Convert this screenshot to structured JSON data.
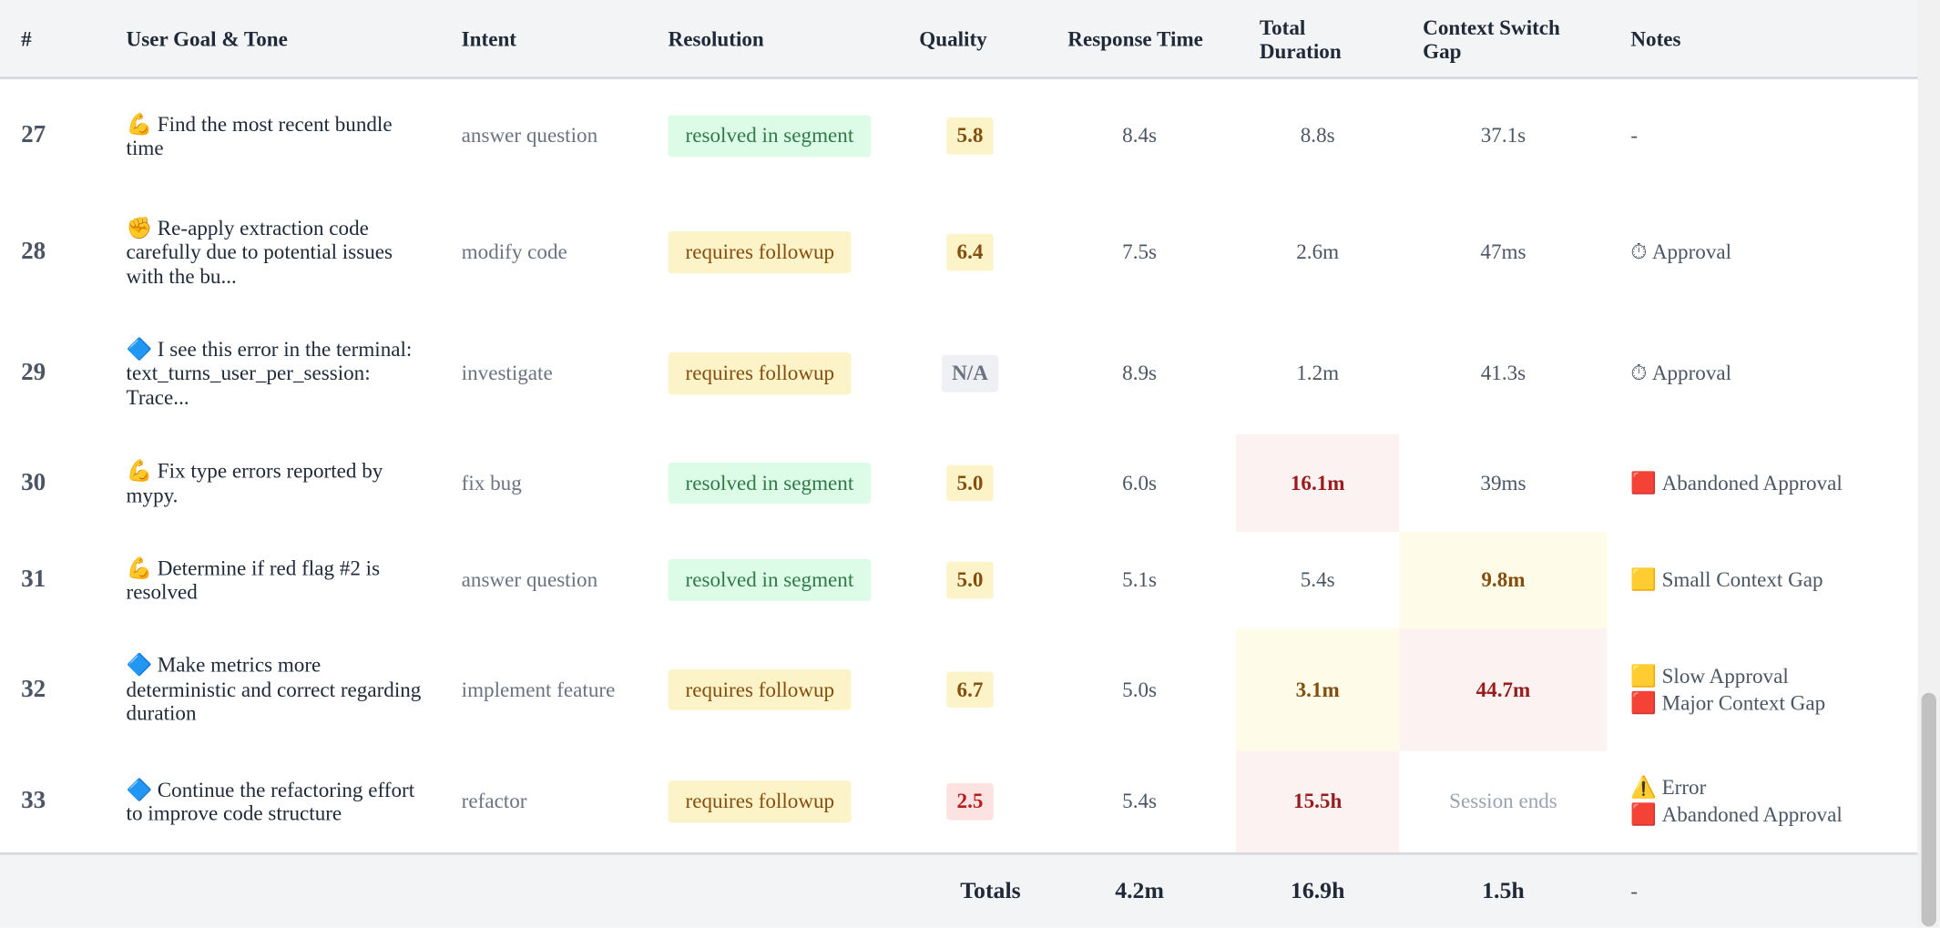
{
  "header": {
    "columns": [
      "#",
      "User Goal & Tone",
      "Intent",
      "Resolution",
      "Quality",
      "Response Time",
      "Total Duration",
      "Context Switch Gap",
      "Notes"
    ]
  },
  "rows": [
    {
      "number": "27",
      "goal_icon": "💪",
      "goal": "Find the most recent bundle time",
      "intent": "answer question",
      "resolution": "resolved in segment",
      "resolution_tone": "green",
      "quality": "5.8",
      "quality_tone": "yellow",
      "response_time": "8.4s",
      "total_duration": "8.8s",
      "context_gap": "37.1s",
      "notes": [
        {
          "text": "-"
        }
      ]
    },
    {
      "number": "28",
      "goal_icon": "✊",
      "goal": "Re-apply extraction code carefully due to potential issues with the bu...",
      "intent": "modify code",
      "resolution": "requires followup",
      "resolution_tone": "yellow",
      "quality": "6.4",
      "quality_tone": "yellow",
      "response_time": "7.5s",
      "total_duration": "2.6m",
      "context_gap": "47ms",
      "notes": [
        {
          "icon": "⏱",
          "text": "Approval"
        }
      ]
    },
    {
      "number": "29",
      "goal_icon": "🔷",
      "goal": "I see this error in the terminal: text_turns_user_per_session: Trace...",
      "intent": "investigate",
      "resolution": "requires followup",
      "resolution_tone": "yellow",
      "quality": "N/A",
      "quality_tone": "gray",
      "response_time": "8.9s",
      "total_duration": "1.2m",
      "context_gap": "41.3s",
      "notes": [
        {
          "icon": "⏱",
          "text": "Approval"
        }
      ]
    },
    {
      "number": "30",
      "goal_icon": "💪",
      "goal": "Fix type errors reported by mypy.",
      "intent": "fix bug",
      "resolution": "resolved in segment",
      "resolution_tone": "green",
      "quality": "5.0",
      "quality_tone": "yellow",
      "response_time": "6.0s",
      "total_duration": "16.1m",
      "total_tone": "red",
      "context_gap": "39ms",
      "notes": [
        {
          "icon": "🟥",
          "text": "Abandoned Approval"
        }
      ]
    },
    {
      "number": "31",
      "goal_icon": "💪",
      "goal": "Determine if red flag #2 is resolved",
      "intent": "answer question",
      "resolution": "resolved in segment",
      "resolution_tone": "green",
      "quality": "5.0",
      "quality_tone": "yellow",
      "response_time": "5.1s",
      "total_duration": "5.4s",
      "context_gap": "9.8m",
      "gap_tone": "yellow",
      "notes": [
        {
          "icon": "🟨",
          "text": "Small Context Gap"
        }
      ]
    },
    {
      "number": "32",
      "goal_icon": "🔷",
      "goal": "Make metrics more deterministic and correct regarding duration",
      "intent": "implement feature",
      "resolution": "requires followup",
      "resolution_tone": "yellow",
      "quality": "6.7",
      "quality_tone": "yellow",
      "response_time": "5.0s",
      "total_duration": "3.1m",
      "total_tone": "yellow",
      "context_gap": "44.7m",
      "gap_tone": "red",
      "notes": [
        {
          "icon": "🟨",
          "text": "Slow Approval"
        },
        {
          "icon": "🟥",
          "text": "Major Context Gap"
        }
      ]
    },
    {
      "number": "33",
      "goal_icon": "🔷",
      "goal": "Continue the refactoring effort to improve code structure",
      "intent": "refactor",
      "resolution": "requires followup",
      "resolution_tone": "yellow",
      "quality": "2.5",
      "quality_tone": "red",
      "response_time": "5.4s",
      "total_duration": "15.5h",
      "total_tone": "red",
      "context_gap": "Session ends",
      "gap_tone": "muted",
      "notes": [
        {
          "icon": "⚠️",
          "text": "Error"
        },
        {
          "icon": "🟥",
          "text": "Abandoned Approval"
        }
      ]
    }
  ],
  "totals": {
    "label": "Totals",
    "response_time": "4.2m",
    "total_duration": "16.9h",
    "context_gap": "1.5h",
    "notes": "-"
  }
}
